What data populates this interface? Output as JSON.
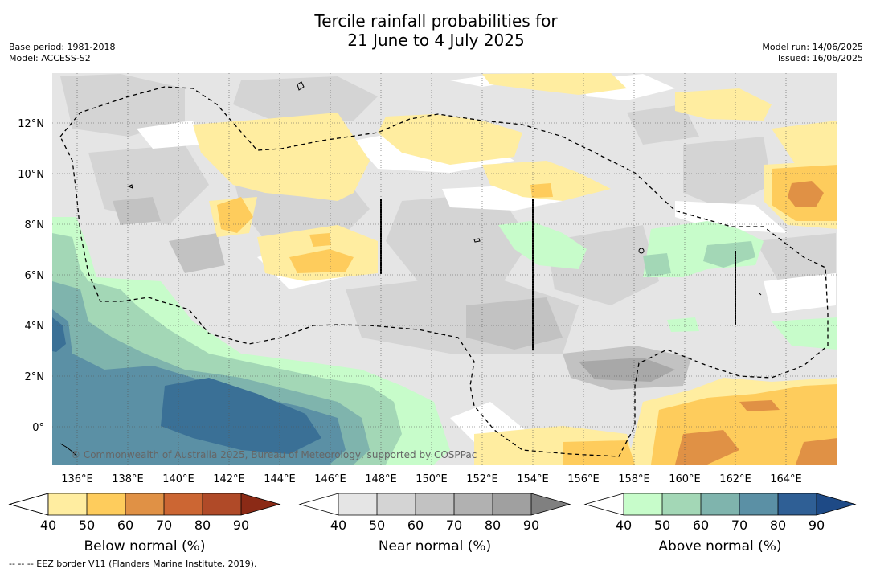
{
  "title": {
    "line1": "Tercile rainfall probabilities for",
    "line2": "21 June to 4 July 2025"
  },
  "meta": {
    "base_period": "Base period: 1981-2018",
    "model": "Model: ACCESS-S2",
    "model_run": "Model run: 14/06/2025",
    "issued": "Issued: 16/06/2025"
  },
  "map": {
    "lat_labels": [
      "12°N",
      "10°N",
      "8°N",
      "6°N",
      "4°N",
      "2°N",
      "0°"
    ],
    "lon_labels": [
      "136°E",
      "138°E",
      "140°E",
      "142°E",
      "144°E",
      "146°E",
      "148°E",
      "150°E",
      "152°E",
      "154°E",
      "156°E",
      "158°E",
      "160°E",
      "162°E",
      "164°E"
    ],
    "copyright": "© Commonwealth of Australia 2025, Bureau of Meteorology, supported by COSPPac"
  },
  "legends": [
    {
      "title": "Below normal (%)",
      "ticks": [
        "40",
        "50",
        "60",
        "70",
        "80",
        "90"
      ],
      "colors": [
        "#ffffff",
        "#ffeda0",
        "#fecc5c",
        "#e09145",
        "#cc6633",
        "#b04a28",
        "#8b2a16"
      ]
    },
    {
      "title": "Near normal (%)",
      "ticks": [
        "40",
        "50",
        "60",
        "70",
        "80",
        "90"
      ],
      "colors": [
        "#ffffff",
        "#e5e5e5",
        "#d4d4d4",
        "#c2c2c2",
        "#b1b1b1",
        "#a0a0a0",
        "#808080"
      ]
    },
    {
      "title": "Above normal (%)",
      "ticks": [
        "40",
        "50",
        "60",
        "70",
        "80",
        "90"
      ],
      "colors": [
        "#ffffff",
        "#c7fcca",
        "#a3d7b6",
        "#7fb4ad",
        "#5b90a5",
        "#2f5f95",
        "#1e4a86"
      ]
    }
  ],
  "footnote": "-- -- -- EEZ border V11 (Flanders Marine Institute, 2019)."
}
